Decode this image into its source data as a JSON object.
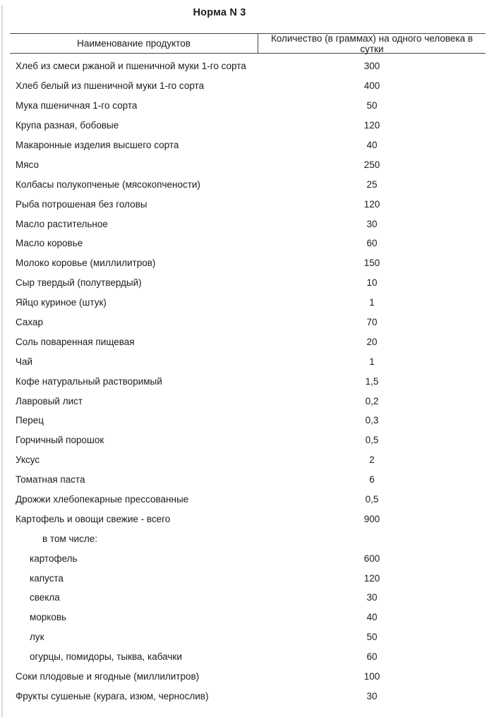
{
  "title": "Норма N 3",
  "table": {
    "columns": [
      "Наименование продуктов",
      "Количество (в граммах) на одного человека в сутки"
    ],
    "rows": [
      {
        "label": "Хлеб из смеси ржаной и пшеничной муки 1-го сорта",
        "value": "300",
        "indent": 0
      },
      {
        "label": "Хлеб белый из пшеничной муки 1-го сорта",
        "value": "400",
        "indent": 0
      },
      {
        "label": "Мука пшеничная 1-го сорта",
        "value": "50",
        "indent": 0
      },
      {
        "label": "Крупа разная, бобовые",
        "value": "120",
        "indent": 0
      },
      {
        "label": "Макаронные изделия высшего сорта",
        "value": "40",
        "indent": 0
      },
      {
        "label": "Мясо",
        "value": "250",
        "indent": 0
      },
      {
        "label": "Колбасы полукопченые (мясокопчености)",
        "value": "25",
        "indent": 0
      },
      {
        "label": "Рыба потрошеная без головы",
        "value": "120",
        "indent": 0
      },
      {
        "label": "Масло растительное",
        "value": "30",
        "indent": 0
      },
      {
        "label": "Масло коровье",
        "value": "60",
        "indent": 0
      },
      {
        "label": "Молоко коровье (миллилитров)",
        "value": "150",
        "indent": 0
      },
      {
        "label": "Сыр твердый (полутвердый)",
        "value": "10",
        "indent": 0
      },
      {
        "label": "Яйцо куриное (штук)",
        "value": "1",
        "indent": 0
      },
      {
        "label": "Сахар",
        "value": "70",
        "indent": 0
      },
      {
        "label": "Соль поваренная пищевая",
        "value": "20",
        "indent": 0
      },
      {
        "label": "Чай",
        "value": "1",
        "indent": 0
      },
      {
        "label": "Кофе натуральный растворимый",
        "value": "1,5",
        "indent": 0
      },
      {
        "label": "Лавровый лист",
        "value": "0,2",
        "indent": 0
      },
      {
        "label": "Перец",
        "value": "0,3",
        "indent": 0
      },
      {
        "label": "Горчичный порошок",
        "value": "0,5",
        "indent": 0
      },
      {
        "label": "Уксус",
        "value": "2",
        "indent": 0
      },
      {
        "label": "Томатная паста",
        "value": "6",
        "indent": 0
      },
      {
        "label": "Дрожжи хлебопекарные прессованные",
        "value": "0,5",
        "indent": 0
      },
      {
        "label": "Картофель и овощи свежие - всего",
        "value": "900",
        "indent": 0
      },
      {
        "label": "в том числе:",
        "value": "",
        "indent": 2
      },
      {
        "label": "картофель",
        "value": "600",
        "indent": 1
      },
      {
        "label": "капуста",
        "value": "120",
        "indent": 1
      },
      {
        "label": "свекла",
        "value": "30",
        "indent": 1
      },
      {
        "label": "морковь",
        "value": "40",
        "indent": 1
      },
      {
        "label": "лук",
        "value": "50",
        "indent": 1
      },
      {
        "label": "огурцы, помидоры, тыква, кабачки",
        "value": "60",
        "indent": 1
      },
      {
        "label": "Соки плодовые и ягодные (миллилитров)",
        "value": "100",
        "indent": 0
      },
      {
        "label": "Фрукты сушеные (курага, изюм, чернослив)",
        "value": "30",
        "indent": 0
      }
    ]
  },
  "colors": {
    "text": "#1c1c1c",
    "table_border": "#444444",
    "page_edge_line": "#d8d8d8"
  }
}
